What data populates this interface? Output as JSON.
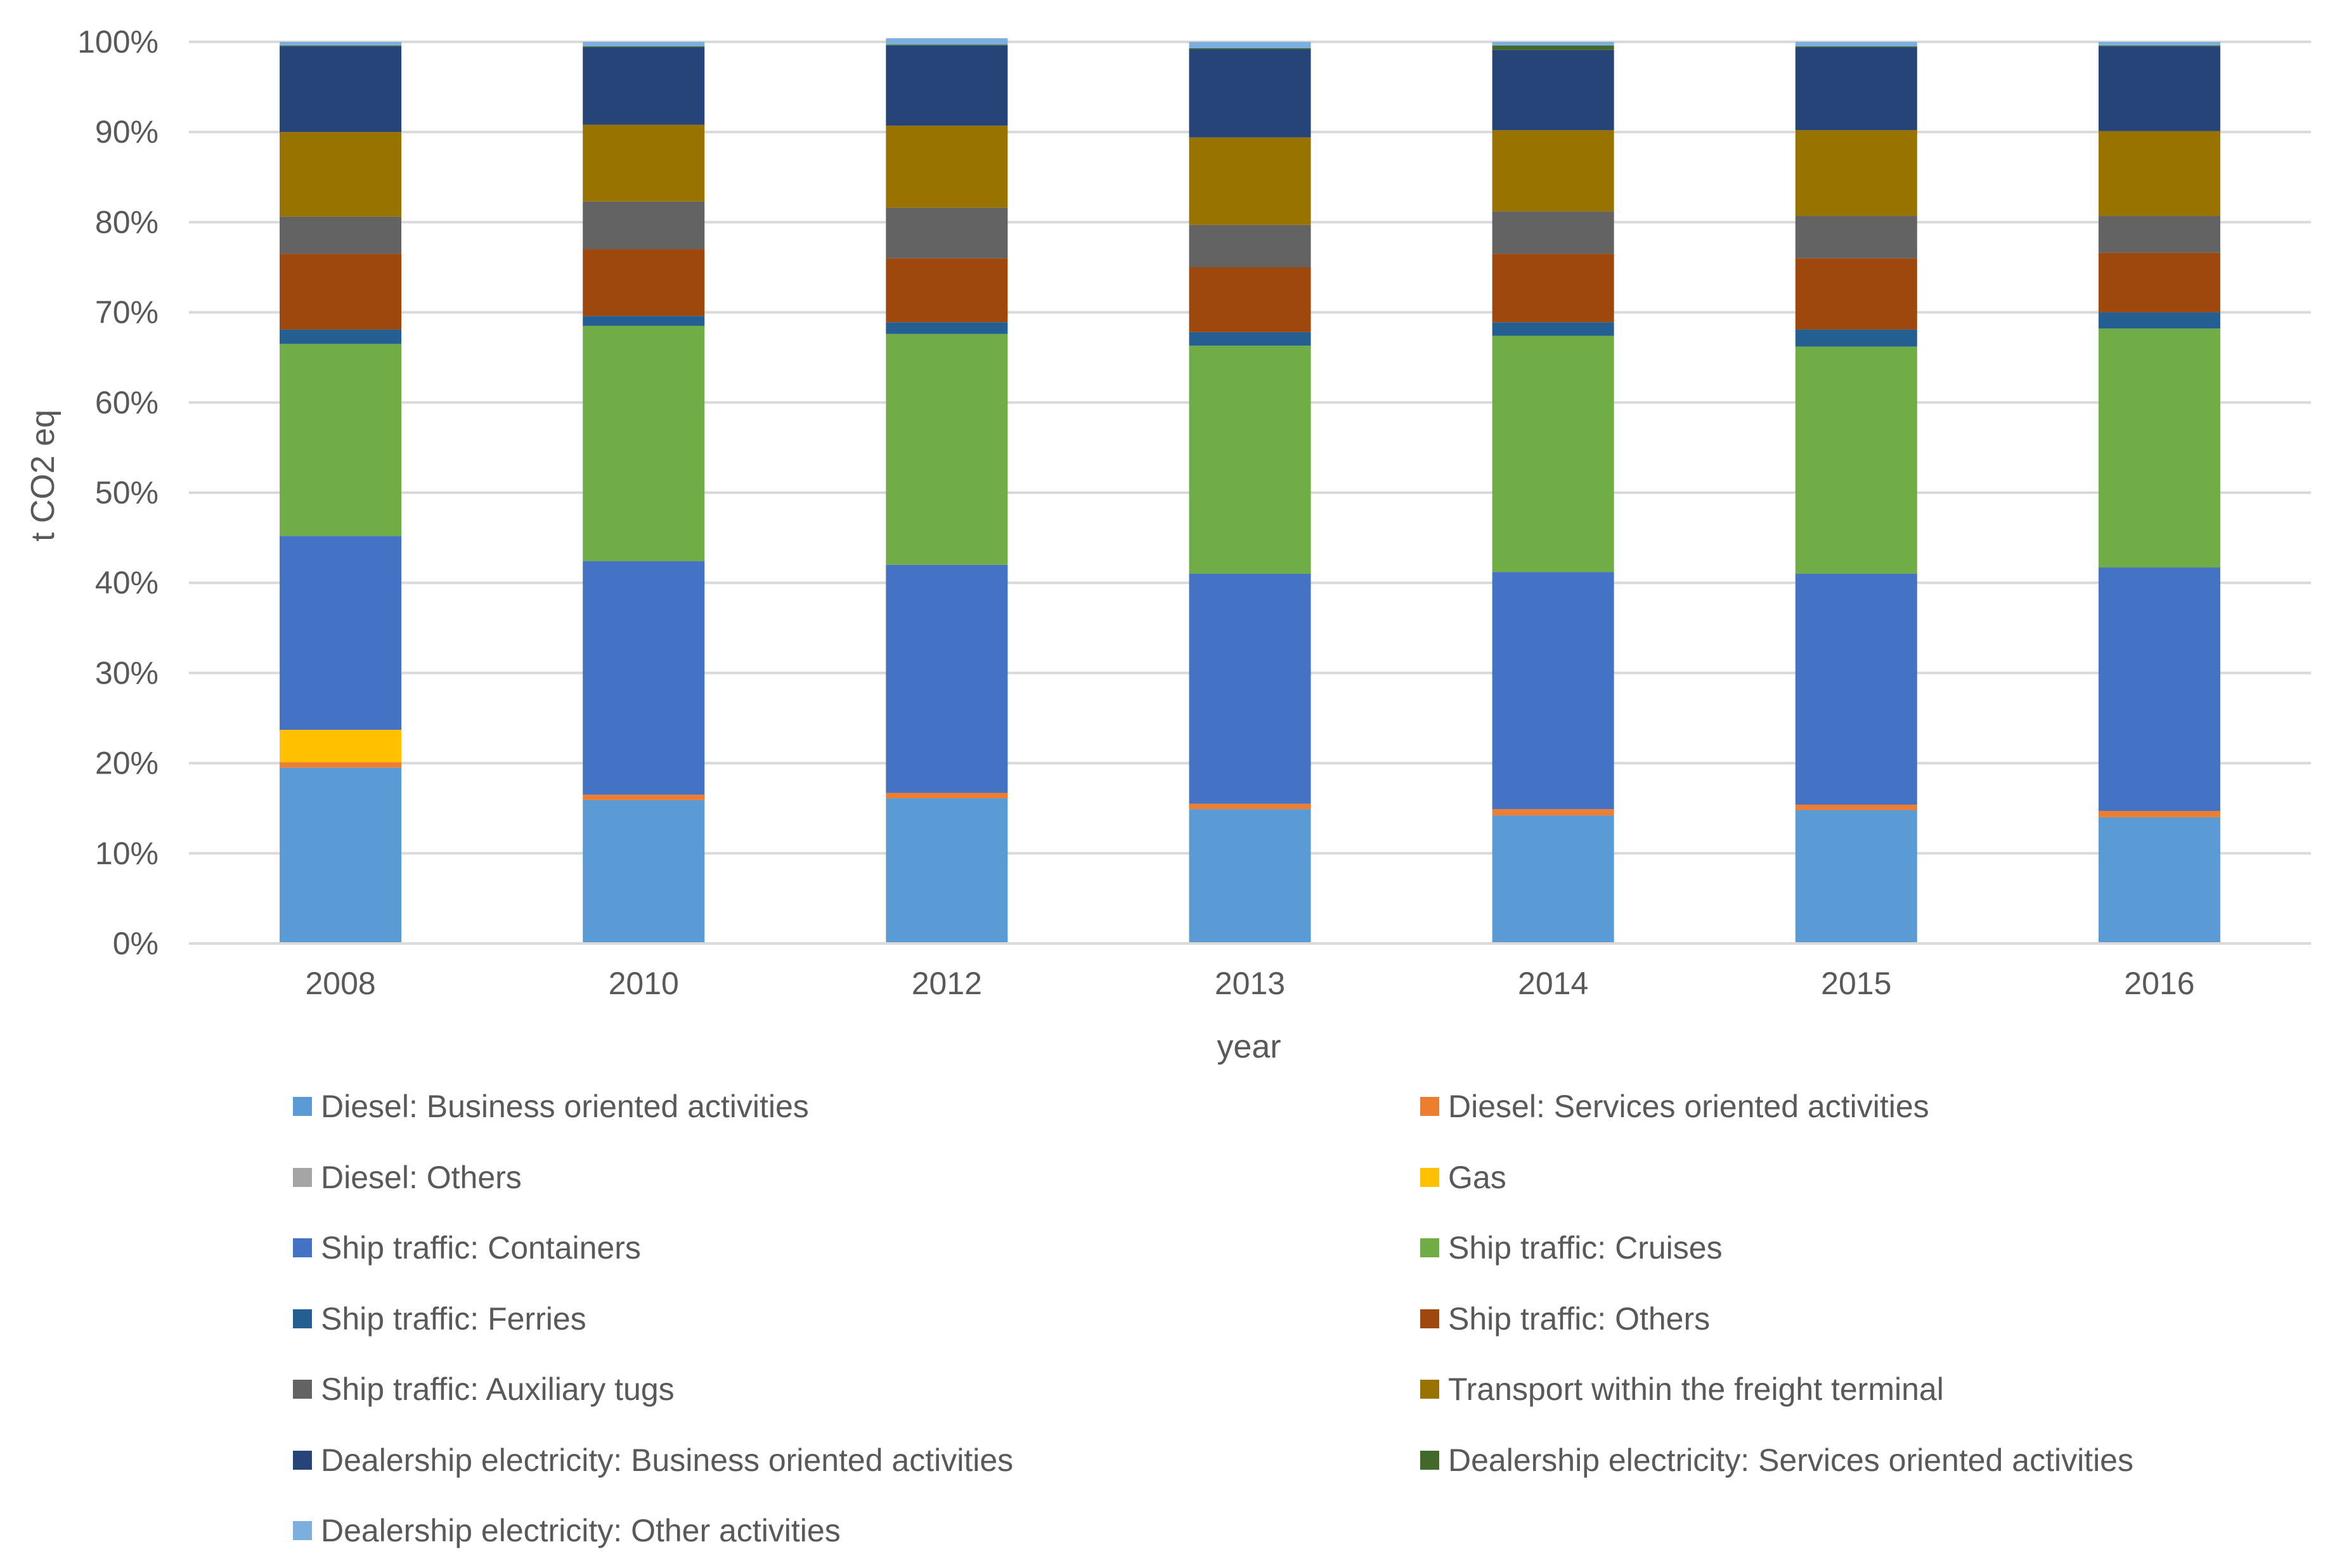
{
  "chart_data": {
    "type": "bar",
    "stacked": true,
    "percent_stacked": true,
    "title": "",
    "xlabel": "year",
    "ylabel": "t CO2 eq",
    "ylim": [
      0,
      100
    ],
    "y_ticks": [
      "0%",
      "10%",
      "20%",
      "30%",
      "40%",
      "50%",
      "60%",
      "70%",
      "80%",
      "90%",
      "100%"
    ],
    "grid": true,
    "legend_position": "bottom",
    "categories": [
      "2008",
      "2010",
      "2012",
      "2013",
      "2014",
      "2015",
      "2016"
    ],
    "series": [
      {
        "name": "Diesel: Business oriented activities",
        "color": "#5B9BD5",
        "values": [
          19.5,
          15.9,
          16.1,
          14.9,
          14.2,
          14.8,
          14.0
        ]
      },
      {
        "name": "Diesel: Services oriented activities",
        "color": "#ED7D31",
        "values": [
          0.6,
          0.6,
          0.6,
          0.6,
          0.7,
          0.6,
          0.7
        ]
      },
      {
        "name": "Diesel: Others",
        "color": "#A5A5A5",
        "values": [
          0.0,
          0.0,
          0.0,
          0.0,
          0.0,
          0.0,
          0.0
        ]
      },
      {
        "name": "Gas",
        "color": "#FFC000",
        "values": [
          3.6,
          0.0,
          0.0,
          0.0,
          0.0,
          0.0,
          0.0
        ]
      },
      {
        "name": "Ship traffic: Containers",
        "color": "#4472C4",
        "values": [
          21.5,
          25.9,
          25.3,
          25.5,
          26.3,
          25.6,
          27.0
        ]
      },
      {
        "name": "Ship traffic: Cruises",
        "color": "#70AD47",
        "values": [
          21.3,
          26.1,
          25.6,
          25.3,
          26.2,
          25.2,
          26.5
        ]
      },
      {
        "name": "Ship traffic: Ferries",
        "color": "#255E91",
        "values": [
          1.6,
          1.1,
          1.3,
          1.5,
          1.5,
          1.9,
          1.8
        ]
      },
      {
        "name": "Ship traffic: Others",
        "color": "#9E480E",
        "values": [
          8.4,
          7.4,
          7.1,
          7.2,
          7.6,
          7.9,
          6.6
        ]
      },
      {
        "name": "Ship traffic: Auxiliary tugs",
        "color": "#636363",
        "values": [
          4.1,
          5.3,
          5.6,
          4.7,
          4.7,
          4.7,
          4.1
        ]
      },
      {
        "name": "Transport within the freight terminal",
        "color": "#997300",
        "values": [
          9.4,
          8.5,
          9.1,
          9.7,
          9.0,
          9.5,
          9.4
        ]
      },
      {
        "name": "Dealership electricity: Business oriented activities",
        "color": "#264478",
        "values": [
          9.5,
          8.6,
          8.9,
          9.8,
          8.9,
          9.2,
          9.4
        ]
      },
      {
        "name": "Dealership electricity: Services oriented activities",
        "color": "#43682B",
        "values": [
          0.1,
          0.1,
          0.1,
          0.1,
          0.5,
          0.1,
          0.1
        ]
      },
      {
        "name": "Dealership electricity: Other activities",
        "color": "#7CAFDD",
        "values": [
          0.4,
          0.5,
          0.7,
          0.7,
          0.4,
          0.5,
          0.4
        ]
      }
    ]
  }
}
